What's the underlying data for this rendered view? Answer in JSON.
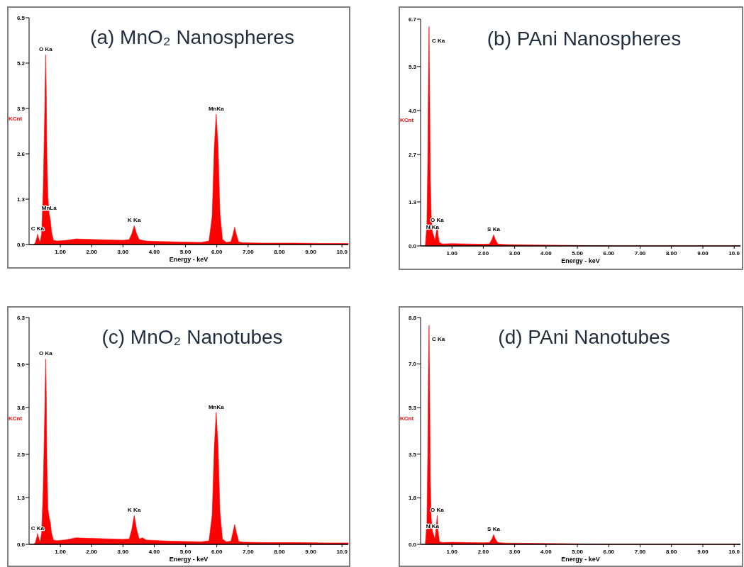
{
  "chart_data": [
    {
      "type": "area",
      "title": "(a) MnO₂ Nanospheres",
      "xlabel": "Energy - keV",
      "ylabel": "KCnt",
      "x": [
        0.15,
        0.2,
        0.25,
        0.27,
        0.3,
        0.35,
        0.4,
        0.45,
        0.5,
        0.53,
        0.55,
        0.57,
        0.6,
        0.64,
        0.68,
        0.72,
        0.78,
        0.9,
        1.2,
        1.5,
        1.8,
        2.2,
        2.6,
        3.0,
        3.2,
        3.28,
        3.36,
        3.44,
        3.52,
        3.62,
        3.75,
        4.0,
        4.5,
        5.0,
        5.5,
        5.75,
        5.85,
        5.92,
        5.98,
        6.04,
        6.1,
        6.18,
        6.3,
        6.45,
        6.52,
        6.57,
        6.62,
        6.7,
        6.85,
        7.5,
        8.5,
        9.5,
        10.2
      ],
      "series": [
        {
          "color": "#ff0000",
          "values": [
            0,
            0.05,
            0.2,
            0.3,
            0.2,
            0.05,
            0.3,
            1.5,
            3.8,
            5.44,
            4.4,
            2.5,
            1.4,
            0.9,
            0.7,
            0.35,
            0.12,
            0.1,
            0.12,
            0.16,
            0.15,
            0.14,
            0.13,
            0.12,
            0.14,
            0.3,
            0.54,
            0.3,
            0.14,
            0.12,
            0.1,
            0.09,
            0.08,
            0.07,
            0.06,
            0.1,
            0.8,
            2.8,
            3.74,
            2.8,
            0.9,
            0.15,
            0.06,
            0.08,
            0.3,
            0.5,
            0.3,
            0.07,
            0.05,
            0.04,
            0.04,
            0.03,
            0.03
          ]
        }
      ],
      "xlim": [
        0,
        10.2
      ],
      "xticks": [
        {
          "value": 1,
          "label": "1.00"
        },
        {
          "value": 2,
          "label": "2.00"
        },
        {
          "value": 3,
          "label": "3.00"
        },
        {
          "value": 4,
          "label": "4.00"
        },
        {
          "value": 5,
          "label": "5.00"
        },
        {
          "value": 6,
          "label": "6.00"
        },
        {
          "value": 7,
          "label": "7.00"
        },
        {
          "value": 8,
          "label": "8.00"
        },
        {
          "value": 9,
          "label": "9.00"
        },
        {
          "value": 10,
          "label": "10.0"
        }
      ],
      "ylim": [
        0,
        6.5
      ],
      "yticks": [
        {
          "value": 0,
          "label": "0.0"
        },
        1.3,
        2.6,
        3.9,
        5.2,
        6.5
      ],
      "annotations": [
        {
          "text": "C Ka",
          "x": 0.27,
          "y": 0.3
        },
        {
          "text": "O Ka",
          "x": 0.53,
          "y": 5.44
        },
        {
          "text": "MnLa",
          "x": 0.64,
          "y": 0.9
        },
        {
          "text": "K Ka",
          "x": 3.36,
          "y": 0.54
        },
        {
          "text": "MnKa",
          "x": 5.98,
          "y": 3.74
        }
      ]
    },
    {
      "type": "area",
      "title": "(b) PAni Nanospheres",
      "xlabel": "Energy - keV",
      "ylabel": "KCnt",
      "x": [
        0.15,
        0.2,
        0.23,
        0.25,
        0.27,
        0.29,
        0.31,
        0.34,
        0.38,
        0.42,
        0.46,
        0.5,
        0.53,
        0.56,
        0.6,
        0.7,
        1.0,
        1.5,
        2.0,
        2.2,
        2.28,
        2.33,
        2.38,
        2.46,
        2.7,
        3.5,
        4.5,
        5.4,
        6.0,
        8.0,
        10.2
      ],
      "series": [
        {
          "color": "#ff0000",
          "values": [
            0,
            0.6,
            2.5,
            5.0,
            6.48,
            4.5,
            2.0,
            0.9,
            0.4,
            0.3,
            0.15,
            0.4,
            0.6,
            0.3,
            0.1,
            0.06,
            0.07,
            0.06,
            0.05,
            0.06,
            0.2,
            0.33,
            0.2,
            0.06,
            0.04,
            0.03,
            0.02,
            0.01,
            0,
            0,
            0
          ]
        }
      ],
      "xlim": [
        0,
        10.2
      ],
      "xticks": [
        {
          "value": 1,
          "label": "1.00"
        },
        {
          "value": 2,
          "label": "2.00"
        },
        {
          "value": 3,
          "label": "3.00"
        },
        {
          "value": 4,
          "label": "4.00"
        },
        {
          "value": 5,
          "label": "5.00"
        },
        {
          "value": 6,
          "label": "6.00"
        },
        {
          "value": 7,
          "label": "7.00"
        },
        {
          "value": 8,
          "label": "8.00"
        },
        {
          "value": 9,
          "label": "9.00"
        },
        {
          "value": 10,
          "label": "10.0"
        }
      ],
      "ylim": [
        0,
        6.7
      ],
      "yticks": [
        {
          "value": 0,
          "label": "0.0"
        },
        1.3,
        2.7,
        {
          "value": 4,
          "label": "4.0"
        },
        5.3,
        6.7
      ],
      "annotations": [
        {
          "text": "C Ka",
          "x": 0.27,
          "y": 6.48
        },
        {
          "text": "O Ka",
          "x": 0.53,
          "y": 0.6
        },
        {
          "text": "N Ka",
          "x": 0.38,
          "y": 0.4
        },
        {
          "text": "S Ka",
          "x": 2.33,
          "y": 0.33
        }
      ]
    },
    {
      "type": "area",
      "title": "(c) MnO₂ Nanotubes",
      "xlabel": "Energy - keV",
      "ylabel": "KCnt",
      "x": [
        0.15,
        0.2,
        0.25,
        0.27,
        0.3,
        0.35,
        0.4,
        0.45,
        0.5,
        0.53,
        0.55,
        0.57,
        0.6,
        0.64,
        0.68,
        0.72,
        0.78,
        0.9,
        1.2,
        1.5,
        1.8,
        2.2,
        2.6,
        3.0,
        3.2,
        3.28,
        3.36,
        3.44,
        3.52,
        3.62,
        3.75,
        4.0,
        4.5,
        5.0,
        5.5,
        5.75,
        5.85,
        5.92,
        5.98,
        6.04,
        6.1,
        6.18,
        6.3,
        6.45,
        6.52,
        6.57,
        6.62,
        6.7,
        6.85,
        7.5,
        8.5,
        9.5,
        10.2
      ],
      "series": [
        {
          "color": "#ff0000",
          "values": [
            0,
            0.05,
            0.2,
            0.3,
            0.2,
            0.05,
            0.3,
            1.5,
            3.6,
            5.15,
            4.2,
            2.2,
            1.0,
            0.75,
            0.6,
            0.3,
            0.12,
            0.1,
            0.13,
            0.18,
            0.17,
            0.16,
            0.15,
            0.14,
            0.15,
            0.4,
            0.8,
            0.4,
            0.15,
            0.18,
            0.12,
            0.11,
            0.09,
            0.08,
            0.07,
            0.1,
            0.8,
            2.7,
            3.67,
            2.7,
            0.9,
            0.15,
            0.07,
            0.09,
            0.35,
            0.55,
            0.35,
            0.08,
            0.06,
            0.05,
            0.05,
            0.04,
            0.04
          ]
        }
      ],
      "xlim": [
        0,
        10.2
      ],
      "xticks": [
        {
          "value": 1,
          "label": "1.00"
        },
        {
          "value": 2,
          "label": "2.00"
        },
        {
          "value": 3,
          "label": "3.00"
        },
        {
          "value": 4,
          "label": "4.00"
        },
        {
          "value": 5,
          "label": "5.00"
        },
        {
          "value": 6,
          "label": "6.00"
        },
        {
          "value": 7,
          "label": "7.00"
        },
        {
          "value": 8,
          "label": "8.00"
        },
        {
          "value": 9,
          "label": "9.00"
        },
        {
          "value": 10,
          "label": "10.0"
        }
      ],
      "ylim": [
        0,
        6.3
      ],
      "yticks": [
        {
          "value": 0,
          "label": "0.0"
        },
        1.3,
        2.5,
        3.8,
        {
          "value": 5,
          "label": "5.0"
        },
        6.3
      ],
      "annotations": [
        {
          "text": "C Ka",
          "x": 0.27,
          "y": 0.3
        },
        {
          "text": "O Ka",
          "x": 0.53,
          "y": 5.15
        },
        {
          "text": "K Ka",
          "x": 3.36,
          "y": 0.8
        },
        {
          "text": "MnKa",
          "x": 5.98,
          "y": 3.67
        }
      ]
    },
    {
      "type": "area",
      "title": "(d) PAni Nanotubes",
      "xlabel": "Energy - keV",
      "ylabel": "KCnt",
      "x": [
        0.15,
        0.2,
        0.23,
        0.25,
        0.27,
        0.29,
        0.31,
        0.34,
        0.38,
        0.42,
        0.46,
        0.5,
        0.53,
        0.56,
        0.6,
        0.7,
        1.0,
        1.5,
        2.0,
        2.2,
        2.28,
        2.33,
        2.38,
        2.46,
        2.7,
        3.5,
        4.5,
        5.4,
        6.0,
        8.0,
        10.2
      ],
      "series": [
        {
          "color": "#ff0000",
          "values": [
            0,
            0.8,
            3.5,
            6.8,
            8.5,
            6.0,
            2.5,
            1.0,
            0.5,
            0.35,
            0.2,
            0.7,
            1.12,
            0.5,
            0.1,
            0.07,
            0.08,
            0.07,
            0.06,
            0.07,
            0.22,
            0.38,
            0.22,
            0.07,
            0.05,
            0.04,
            0.03,
            0.01,
            0,
            0,
            0
          ]
        }
      ],
      "xlim": [
        0,
        10.2
      ],
      "xticks": [
        {
          "value": 1,
          "label": "1.00"
        },
        {
          "value": 2,
          "label": "2.00"
        },
        {
          "value": 3,
          "label": "3.00"
        },
        {
          "value": 4,
          "label": "4.00"
        },
        {
          "value": 5,
          "label": "5.00"
        },
        {
          "value": 6,
          "label": "6.00"
        },
        {
          "value": 7,
          "label": "7.00"
        },
        {
          "value": 8,
          "label": "8.00"
        },
        {
          "value": 9,
          "label": "9.00"
        },
        {
          "value": 10,
          "label": "10.0"
        }
      ],
      "ylim": [
        0,
        8.8
      ],
      "yticks": [
        {
          "value": 0,
          "label": "0.0"
        },
        1.8,
        3.5,
        5.3,
        {
          "value": 7,
          "label": "7.0"
        },
        8.8
      ],
      "annotations": [
        {
          "text": "C Ka",
          "x": 0.27,
          "y": 8.5
        },
        {
          "text": "O Ka",
          "x": 0.53,
          "y": 1.12
        },
        {
          "text": "N Ka",
          "x": 0.38,
          "y": 0.5
        },
        {
          "text": "S Ka",
          "x": 2.33,
          "y": 0.38
        }
      ]
    }
  ]
}
